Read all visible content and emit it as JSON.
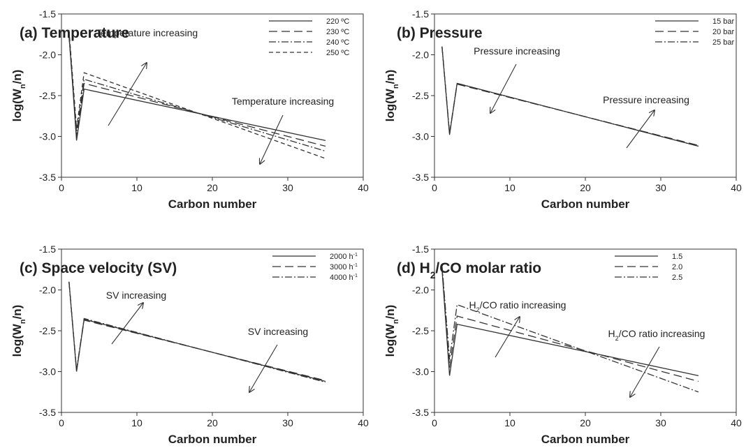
{
  "chart_data": [
    {
      "type": "line",
      "title": "(a) Temperature",
      "xlabel": "Carbon number",
      "ylabel": [
        "log(W",
        "n",
        "/n)"
      ],
      "x": [
        1,
        2,
        3,
        35
      ],
      "xlim": [
        0,
        40
      ],
      "xticks": [
        0,
        10,
        20,
        30,
        40
      ],
      "ylim": [
        -3.5,
        -1.5
      ],
      "yticks": [
        -3.5,
        {
          "value": -3,
          "label": "-3.0"
        },
        -2.5,
        {
          "value": -2,
          "label": "-2.0"
        },
        -1.5
      ],
      "annotations": [
        "Temperature increasing",
        "Temperature increasing"
      ],
      "series": [
        {
          "name": "220 ºC",
          "color": "#333333",
          "dash": "solid",
          "values": [
            -1.75,
            -3.05,
            -2.42,
            -3.05
          ]
        },
        {
          "name": "230 ºC",
          "color": "#333333",
          "dash": "longdash",
          "values": [
            -1.72,
            -3.0,
            -2.35,
            -3.12
          ]
        },
        {
          "name": "240 ºC",
          "color": "#333333",
          "dash": "dashdot",
          "values": [
            -1.78,
            -2.95,
            -2.3,
            -3.18
          ]
        },
        {
          "name": "250 ºC",
          "color": "#333333",
          "dash": "dash",
          "values": [
            -1.7,
            -2.9,
            -2.22,
            -3.27
          ]
        }
      ]
    },
    {
      "type": "line",
      "title": "(b) Pressure",
      "xlabel": "Carbon number",
      "ylabel": [
        "log(W",
        "n",
        "/n)"
      ],
      "x": [
        1,
        2,
        3,
        35
      ],
      "xlim": [
        0,
        40
      ],
      "xticks": [
        0,
        10,
        20,
        30,
        40
      ],
      "ylim": [
        -3.5,
        -1.5
      ],
      "yticks": [
        -3.5,
        {
          "value": -3,
          "label": "-3.0"
        },
        -2.5,
        {
          "value": -2,
          "label": "-2.0"
        },
        -1.5
      ],
      "annotations": [
        "Pressure increasing",
        "Pressure increasing"
      ],
      "series": [
        {
          "name": "15 bar",
          "color": "#333333",
          "dash": "solid",
          "values": [
            -1.9,
            -2.98,
            -2.35,
            -3.12
          ]
        },
        {
          "name": "20 bar",
          "color": "#333333",
          "dash": "longdash",
          "values": [
            -1.9,
            -2.97,
            -2.36,
            -3.11
          ]
        },
        {
          "name": "25 bar",
          "color": "#333333",
          "dash": "dashdot",
          "values": [
            -1.9,
            -2.96,
            -2.35,
            -3.12
          ]
        }
      ]
    },
    {
      "type": "line",
      "title": "(c) Space velocity (SV)",
      "xlabel": "Carbon number",
      "ylabel": [
        "log(W",
        "n",
        "/n)"
      ],
      "x": [
        1,
        2,
        3,
        35
      ],
      "xlim": [
        0,
        40
      ],
      "xticks": [
        0,
        10,
        20,
        30,
        40
      ],
      "ylim": [
        -3.5,
        -1.5
      ],
      "yticks": [
        -3.5,
        {
          "value": -3,
          "label": "-3.0"
        },
        -2.5,
        {
          "value": -2,
          "label": "-2.0"
        },
        -1.5
      ],
      "annotations": [
        "SV increasing",
        "SV increasing"
      ],
      "series": [
        {
          "name": [
            "2000 h",
            "-1"
          ],
          "color": "#333333",
          "dash": "solid",
          "values": [
            -1.9,
            -3.0,
            -2.36,
            -3.12
          ]
        },
        {
          "name": [
            "3000 h",
            "-1"
          ],
          "color": "#333333",
          "dash": "longdash",
          "values": [
            -1.9,
            -2.99,
            -2.37,
            -3.11
          ]
        },
        {
          "name": [
            "4000 h",
            "-1"
          ],
          "color": "#333333",
          "dash": "dashdot",
          "values": [
            -1.9,
            -2.98,
            -2.35,
            -3.13
          ]
        }
      ]
    },
    {
      "type": "line",
      "title": [
        "(d) H",
        "2",
        "/CO molar ratio"
      ],
      "xlabel": "Carbon number",
      "ylabel": [
        "log(W",
        "n",
        "/n)"
      ],
      "x": [
        1,
        2,
        3,
        35
      ],
      "xlim": [
        0,
        40
      ],
      "xticks": [
        0,
        10,
        20,
        30,
        40
      ],
      "ylim": [
        -3.5,
        -1.5
      ],
      "yticks": [
        -3.5,
        {
          "value": -3,
          "label": "-3.0"
        },
        -2.5,
        {
          "value": -2,
          "label": "-2.0"
        },
        -1.5
      ],
      "annotations": [
        [
          "H",
          "2",
          "/CO ratio increasing"
        ],
        [
          "H",
          "2",
          "/CO ratio increasing"
        ]
      ],
      "series": [
        {
          "name": "1.5",
          "color": "#333333",
          "dash": "solid",
          "values": [
            -1.75,
            -3.05,
            -2.42,
            -3.05
          ]
        },
        {
          "name": "2.0",
          "color": "#333333",
          "dash": "longdash",
          "values": [
            -1.72,
            -2.95,
            -2.32,
            -3.12
          ]
        },
        {
          "name": "2.5",
          "color": "#333333",
          "dash": "dashdot",
          "values": [
            -1.7,
            -2.85,
            -2.18,
            -3.25
          ]
        }
      ]
    }
  ]
}
